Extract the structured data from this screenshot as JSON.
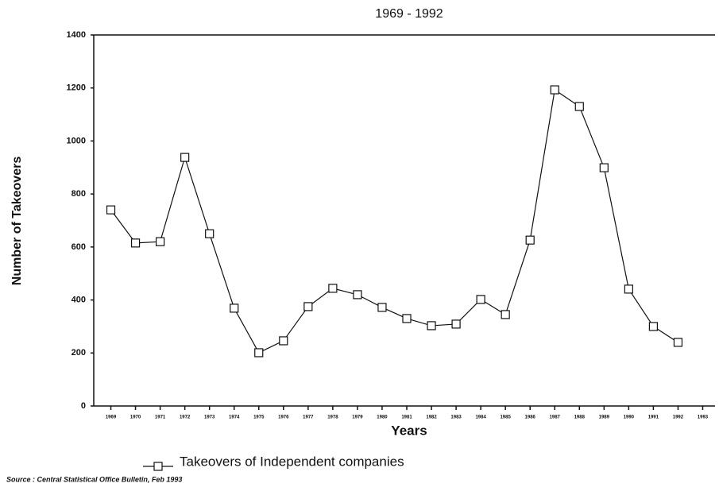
{
  "chart_data": {
    "type": "line",
    "title": "1969 - 1992",
    "x_label": "Years",
    "y_label": "Number of Takeovers",
    "source": "Source : Central Statistical Office Bulletin, Feb 1993",
    "categories": [
      "1969",
      "1970",
      "1971",
      "1972",
      "1973",
      "1974",
      "1975",
      "1976",
      "1977",
      "1978",
      "1979",
      "1980",
      "1981",
      "1982",
      "1983",
      "1984",
      "1985",
      "1986",
      "1987",
      "1988",
      "1989",
      "1990",
      "1991",
      "1992",
      "1993"
    ],
    "series": [
      {
        "name": "Takeovers  of Independent companies",
        "color": "#111111",
        "values": [
          740,
          615,
          620,
          938,
          650,
          369,
          201,
          246,
          375,
          444,
          420,
          372,
          330,
          303,
          309,
          402,
          345,
          626,
          1193,
          1130,
          899,
          441,
          300,
          240,
          null
        ]
      }
    ],
    "ylim": [
      0,
      1400
    ],
    "yticks": [
      0,
      200,
      400,
      600,
      800,
      1000,
      1200,
      1400
    ],
    "grid": false
  }
}
